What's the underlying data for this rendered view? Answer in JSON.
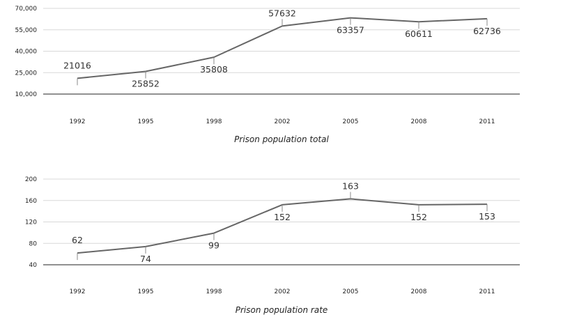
{
  "chart_data": [
    {
      "type": "line",
      "title": "Prison population total",
      "categories": [
        "1992",
        "1995",
        "1998",
        "2002",
        "2005",
        "2008",
        "2011"
      ],
      "values": [
        21016,
        25852,
        35808,
        57632,
        63357,
        60611,
        62736
      ],
      "y_ticks": [
        "10,000",
        "25,000",
        "40,000",
        "55,000",
        "70,000"
      ],
      "ylim": [
        10000,
        70000
      ],
      "data_label_side": [
        "below",
        "below",
        "below",
        "above",
        "below",
        "below",
        "below"
      ],
      "grid": true,
      "colors": {
        "line": "#666666",
        "grid": "#d8d8d8",
        "axis": "#222222"
      }
    },
    {
      "type": "line",
      "title": "Prison population rate",
      "categories": [
        "1992",
        "1995",
        "1998",
        "2002",
        "2005",
        "2008",
        "2011"
      ],
      "values": [
        62,
        74,
        99,
        152,
        163,
        152,
        153
      ],
      "y_ticks": [
        "40",
        "80",
        "120",
        "160",
        "200"
      ],
      "ylim": [
        40,
        200
      ],
      "data_label_side": [
        "below",
        "below",
        "below",
        "below",
        "above",
        "below",
        "below"
      ],
      "grid": true,
      "colors": {
        "line": "#666666",
        "grid": "#d8d8d8",
        "axis": "#222222"
      }
    }
  ]
}
